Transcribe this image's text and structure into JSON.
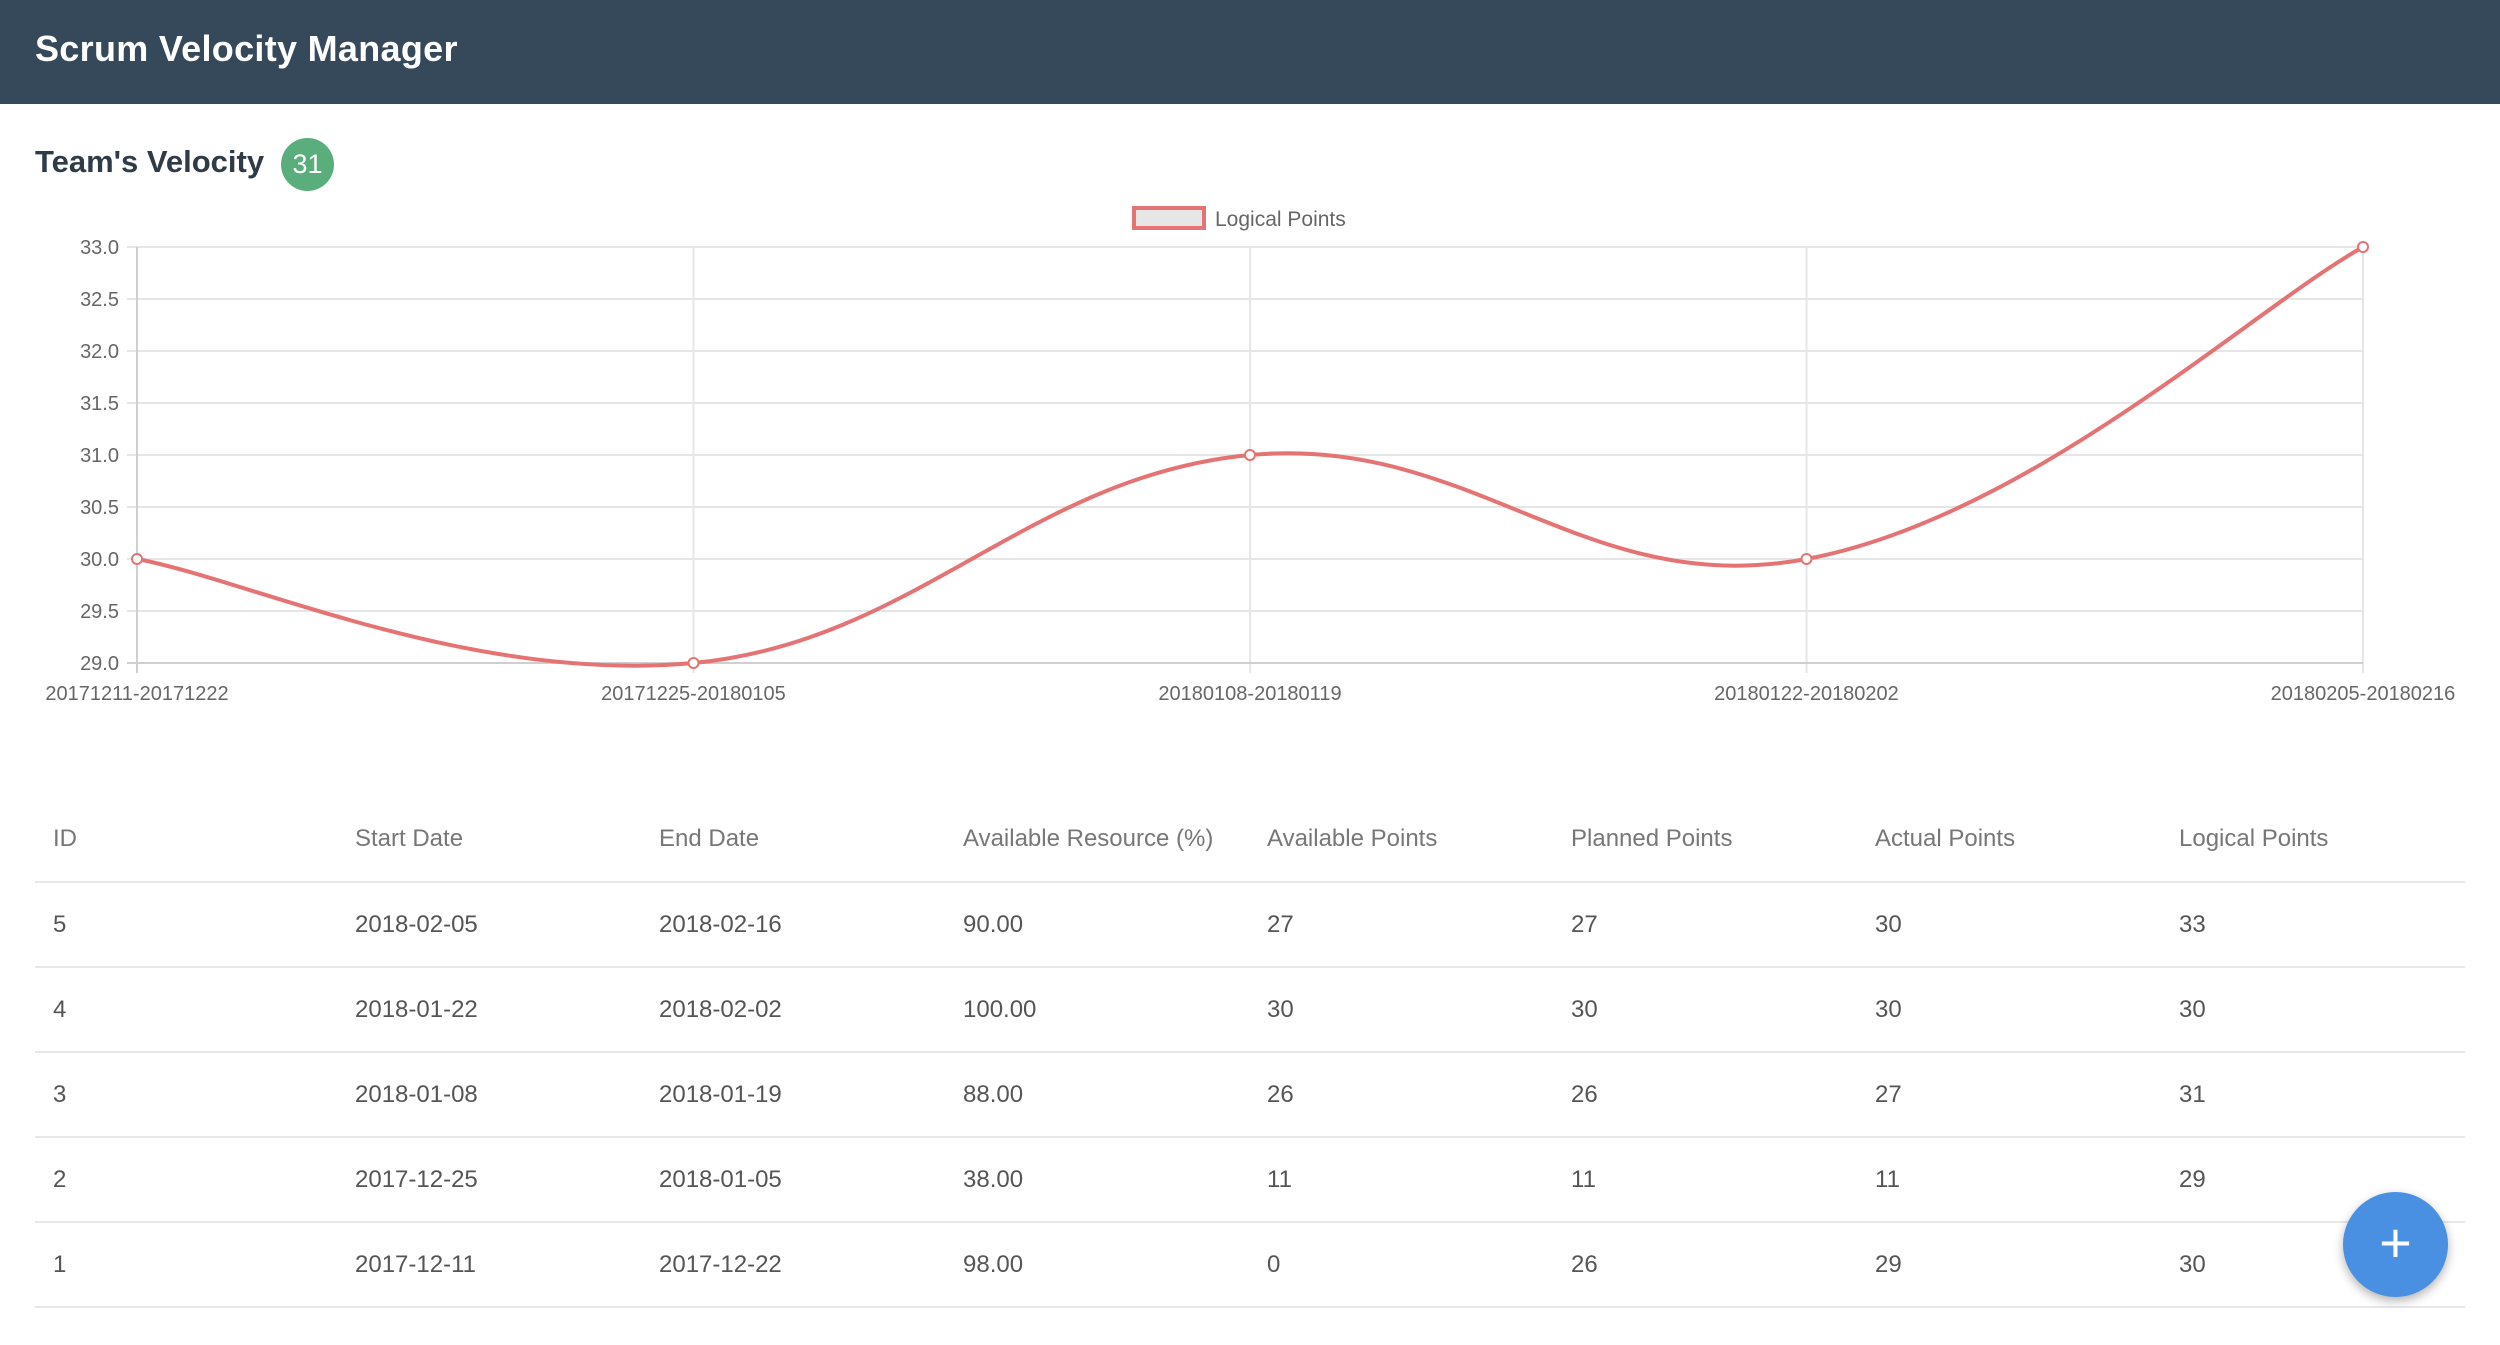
{
  "header": {
    "title": "Scrum Velocity Manager"
  },
  "section": {
    "title": "Team's Velocity",
    "velocity_badge": "31"
  },
  "chart_data": {
    "type": "line",
    "categories": [
      "20171211-20171222",
      "20171225-20180105",
      "20180108-20180119",
      "20180122-20180202",
      "20180205-20180216"
    ],
    "series": [
      {
        "name": "Logical Points",
        "values": [
          30,
          29,
          31,
          30,
          33
        ],
        "color": "#e57373"
      }
    ],
    "ylim": [
      29.0,
      33.0
    ],
    "yticks": [
      "29.0",
      "29.5",
      "30.0",
      "30.5",
      "31.0",
      "31.5",
      "32.0",
      "32.5",
      "33.0"
    ],
    "grid": true,
    "legend_position": "top-center",
    "title": "",
    "xlabel": "",
    "ylabel": ""
  },
  "table": {
    "columns": [
      "ID",
      "Start Date",
      "End Date",
      "Available Resource (%)",
      "Available Points",
      "Planned Points",
      "Actual Points",
      "Logical Points"
    ],
    "rows": [
      [
        "5",
        "2018-02-05",
        "2018-02-16",
        "90.00",
        "27",
        "27",
        "30",
        "33"
      ],
      [
        "4",
        "2018-01-22",
        "2018-02-02",
        "100.00",
        "30",
        "30",
        "30",
        "30"
      ],
      [
        "3",
        "2018-01-08",
        "2018-01-19",
        "88.00",
        "26",
        "26",
        "27",
        "31"
      ],
      [
        "2",
        "2017-12-25",
        "2018-01-05",
        "38.00",
        "11",
        "11",
        "11",
        "29"
      ],
      [
        "1",
        "2017-12-11",
        "2017-12-22",
        "98.00",
        "0",
        "26",
        "29",
        "30"
      ]
    ]
  },
  "fab": {
    "icon": "plus-icon",
    "symbol": "+"
  },
  "colors": {
    "header_bg": "#36495a",
    "badge_bg": "#5aae7b",
    "fab_bg": "#4a90e2",
    "line": "#e57373"
  }
}
